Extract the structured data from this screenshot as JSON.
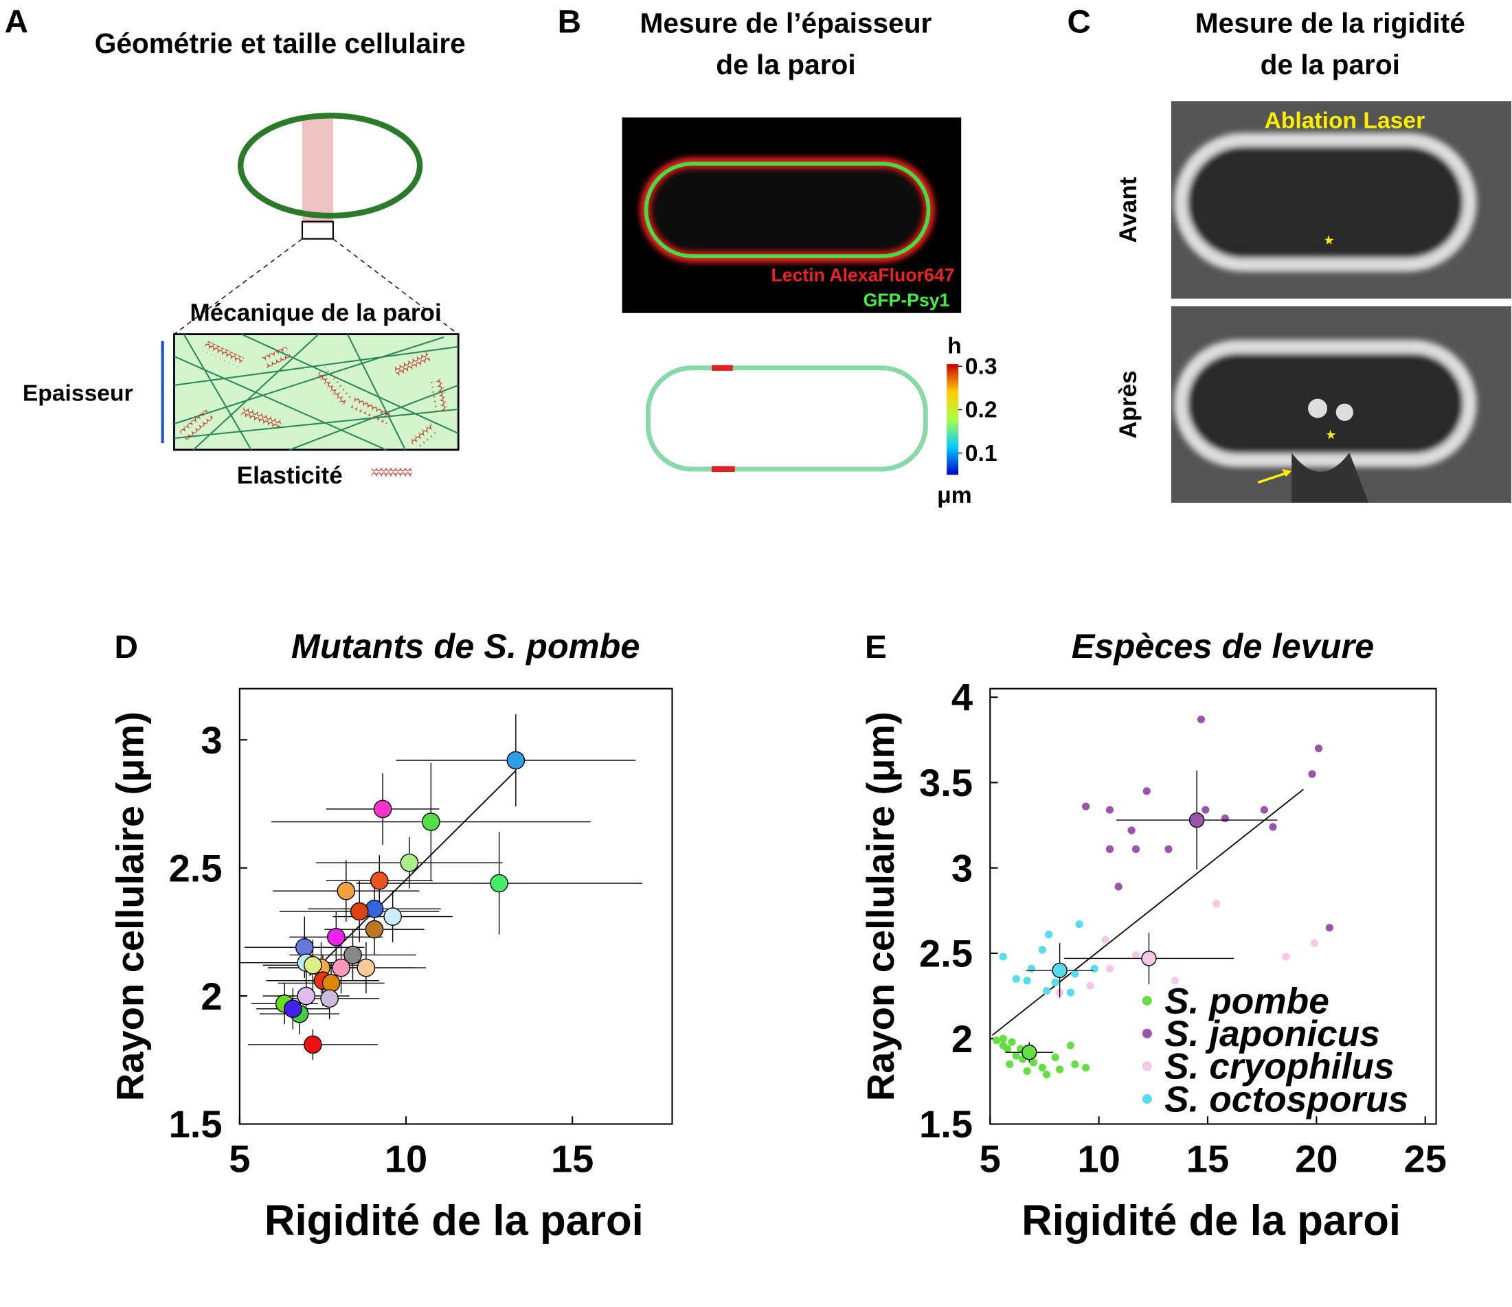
{
  "panels": {
    "A": {
      "letter": "A",
      "title": "Géométrie et taille cellulaire",
      "subtitle": "Mécanique de la paroi",
      "thickness_label": "Epaisseur",
      "elasticity_label": "Elasticité"
    },
    "B": {
      "letter": "B",
      "title": [
        "Mesure de l’épaisseur",
        "de la paroi"
      ],
      "stain_labels": [
        "Lectin AlexaFluor647",
        "GFP-Psy1"
      ],
      "colorbar": {
        "label": "h",
        "unit": "μm",
        "lim": [
          0.05,
          0.305
        ],
        "ticks": [
          0.1,
          0.2,
          0.3
        ]
      }
    },
    "C": {
      "letter": "C",
      "title": [
        "Mesure de la rigidité",
        "de la paroi"
      ],
      "annotation": "Ablation Laser",
      "rows": [
        "Avant",
        "Après"
      ]
    }
  },
  "chart_data": [
    {
      "type": "scatter",
      "panel": "D",
      "title": "Mutants de S. pombe",
      "x_label": "Rigidité de la paroi",
      "y_label": "Rayon cellulaire (μm)",
      "xlim": [
        5,
        18
      ],
      "ylim": [
        1.5,
        3.2
      ],
      "xticks": [
        5,
        10,
        15
      ],
      "yticks": [
        1.5,
        2,
        2.5,
        3
      ],
      "x": [
        13.3,
        9.3,
        10.75,
        12.8,
        10.1,
        9.2,
        8.2,
        9.6,
        9.05,
        8.6,
        9.05,
        7.9,
        6.95,
        8.4,
        7.0,
        8.8,
        8.05,
        7.45,
        7.2,
        7.5,
        7.75,
        7.0,
        7.7,
        6.35,
        6.8,
        6.6,
        7.2
      ],
      "values": [
        2.92,
        2.73,
        2.68,
        2.44,
        2.52,
        2.45,
        2.41,
        2.31,
        2.34,
        2.33,
        2.26,
        2.23,
        2.19,
        2.16,
        2.13,
        2.11,
        2.11,
        2.11,
        2.12,
        2.06,
        2.05,
        2.0,
        1.99,
        1.97,
        1.93,
        1.95,
        1.81
      ],
      "xerr": [
        3.6,
        1.7,
        4.8,
        4.3,
        2.8,
        1.6,
        2.2,
        1.8,
        2.0,
        2.4,
        1.5,
        1.4,
        1.8,
        1.9,
        2.0,
        1.8,
        2.2,
        1.6,
        1.5,
        1.7,
        1.6,
        1.3,
        1.5,
        1.0,
        1.2,
        1.1,
        1.95
      ],
      "yerr": [
        0.18,
        0.14,
        0.23,
        0.2,
        0.1,
        0.1,
        0.12,
        0.1,
        0.1,
        0.12,
        0.1,
        0.1,
        0.12,
        0.1,
        0.1,
        0.1,
        0.1,
        0.1,
        0.1,
        0.1,
        0.08,
        0.08,
        0.08,
        0.08,
        0.08,
        0.08,
        0.06
      ],
      "colors": [
        "#2e9fe6",
        "#ff33cc",
        "#55dd44",
        "#44ee66",
        "#aaee88",
        "#e85520",
        "#f0a040",
        "#cceeff",
        "#3366dd",
        "#dd4411",
        "#bb7722",
        "#ee22ee",
        "#6677dd",
        "#888888",
        "#bbeeee",
        "#ffcc99",
        "#ff99bb",
        "#ffaa44",
        "#ddee88",
        "#ee3311",
        "#dd8800",
        "#ddbbee",
        "#ccbbdd",
        "#66dd22",
        "#44cc44",
        "#4422ee",
        "#ee1111"
      ],
      "fit": {
        "x": [
          7.1,
          13.3
        ],
        "y": [
          2.08,
          2.88
        ]
      }
    },
    {
      "type": "scatter",
      "panel": "E",
      "title": "Espèces de levure",
      "x_label": "Rigidité de la paroi",
      "y_label": "Rayon cellulaire (μm)",
      "xlim": [
        5,
        25.5
      ],
      "ylim": [
        1.5,
        4.05
      ],
      "xticks": [
        5,
        10,
        15,
        20,
        25
      ],
      "yticks": [
        1.5,
        2,
        2.5,
        3,
        3.5,
        4
      ],
      "legend": "lower right",
      "series": [
        {
          "name": "S. pombe",
          "color": "#66dd44",
          "x": [
            5.3,
            5.6,
            5.8,
            6.0,
            6.2,
            5.9,
            6.5,
            6.7,
            7.0,
            7.4,
            7.6,
            8.0,
            8.2,
            8.7,
            8.9,
            9.4,
            5.6,
            6.4
          ],
          "values": [
            1.99,
            1.96,
            1.94,
            1.98,
            1.9,
            1.85,
            1.88,
            1.81,
            1.86,
            1.83,
            1.79,
            1.89,
            1.82,
            1.96,
            1.85,
            1.83,
            2.0,
            1.94
          ],
          "mean": {
            "x": 6.8,
            "y": 1.92,
            "xerr": 1.1,
            "yerr": 0.06
          }
        },
        {
          "name": "S. japonicus",
          "color": "#9955aa",
          "x": [
            14.7,
            20.1,
            19.8,
            9.4,
            10.5,
            12.2,
            14.9,
            17.6,
            15.8,
            11.5,
            10.5,
            11.7,
            13.2,
            18.0,
            10.9,
            20.6
          ],
          "values": [
            3.87,
            3.7,
            3.55,
            3.36,
            3.34,
            3.45,
            3.34,
            3.34,
            3.29,
            3.22,
            3.11,
            3.11,
            3.11,
            3.24,
            2.89,
            2.65
          ],
          "mean": {
            "x": 14.5,
            "y": 3.28,
            "xerr": 3.7,
            "yerr": 0.29
          }
        },
        {
          "name": "S. cryophilus",
          "color": "#f5c8e8",
          "x": [
            15.4,
            10.3,
            11.7,
            13.5,
            18.6,
            19.9,
            9.6,
            8.2,
            10.5
          ],
          "values": [
            2.79,
            2.58,
            2.49,
            2.34,
            2.48,
            2.56,
            2.31,
            2.27,
            2.41
          ],
          "mean": {
            "x": 12.3,
            "y": 2.47,
            "xerr": 3.9,
            "yerr": 0.15
          }
        },
        {
          "name": "S. octosporus",
          "color": "#55ddee",
          "x": [
            5.6,
            6.2,
            6.9,
            7.4,
            7.7,
            8.0,
            8.7,
            8.9,
            9.1,
            9.8,
            7.6,
            6.7
          ],
          "values": [
            2.48,
            2.35,
            2.41,
            2.52,
            2.61,
            2.33,
            2.27,
            2.38,
            2.67,
            2.41,
            2.28,
            2.34
          ],
          "mean": {
            "x": 8.2,
            "y": 2.4,
            "xerr": 1.55,
            "yerr": 0.16
          }
        }
      ],
      "fit": {
        "x": [
          5.1,
          19.4
        ],
        "y": [
          2.02,
          3.46
        ]
      }
    }
  ]
}
